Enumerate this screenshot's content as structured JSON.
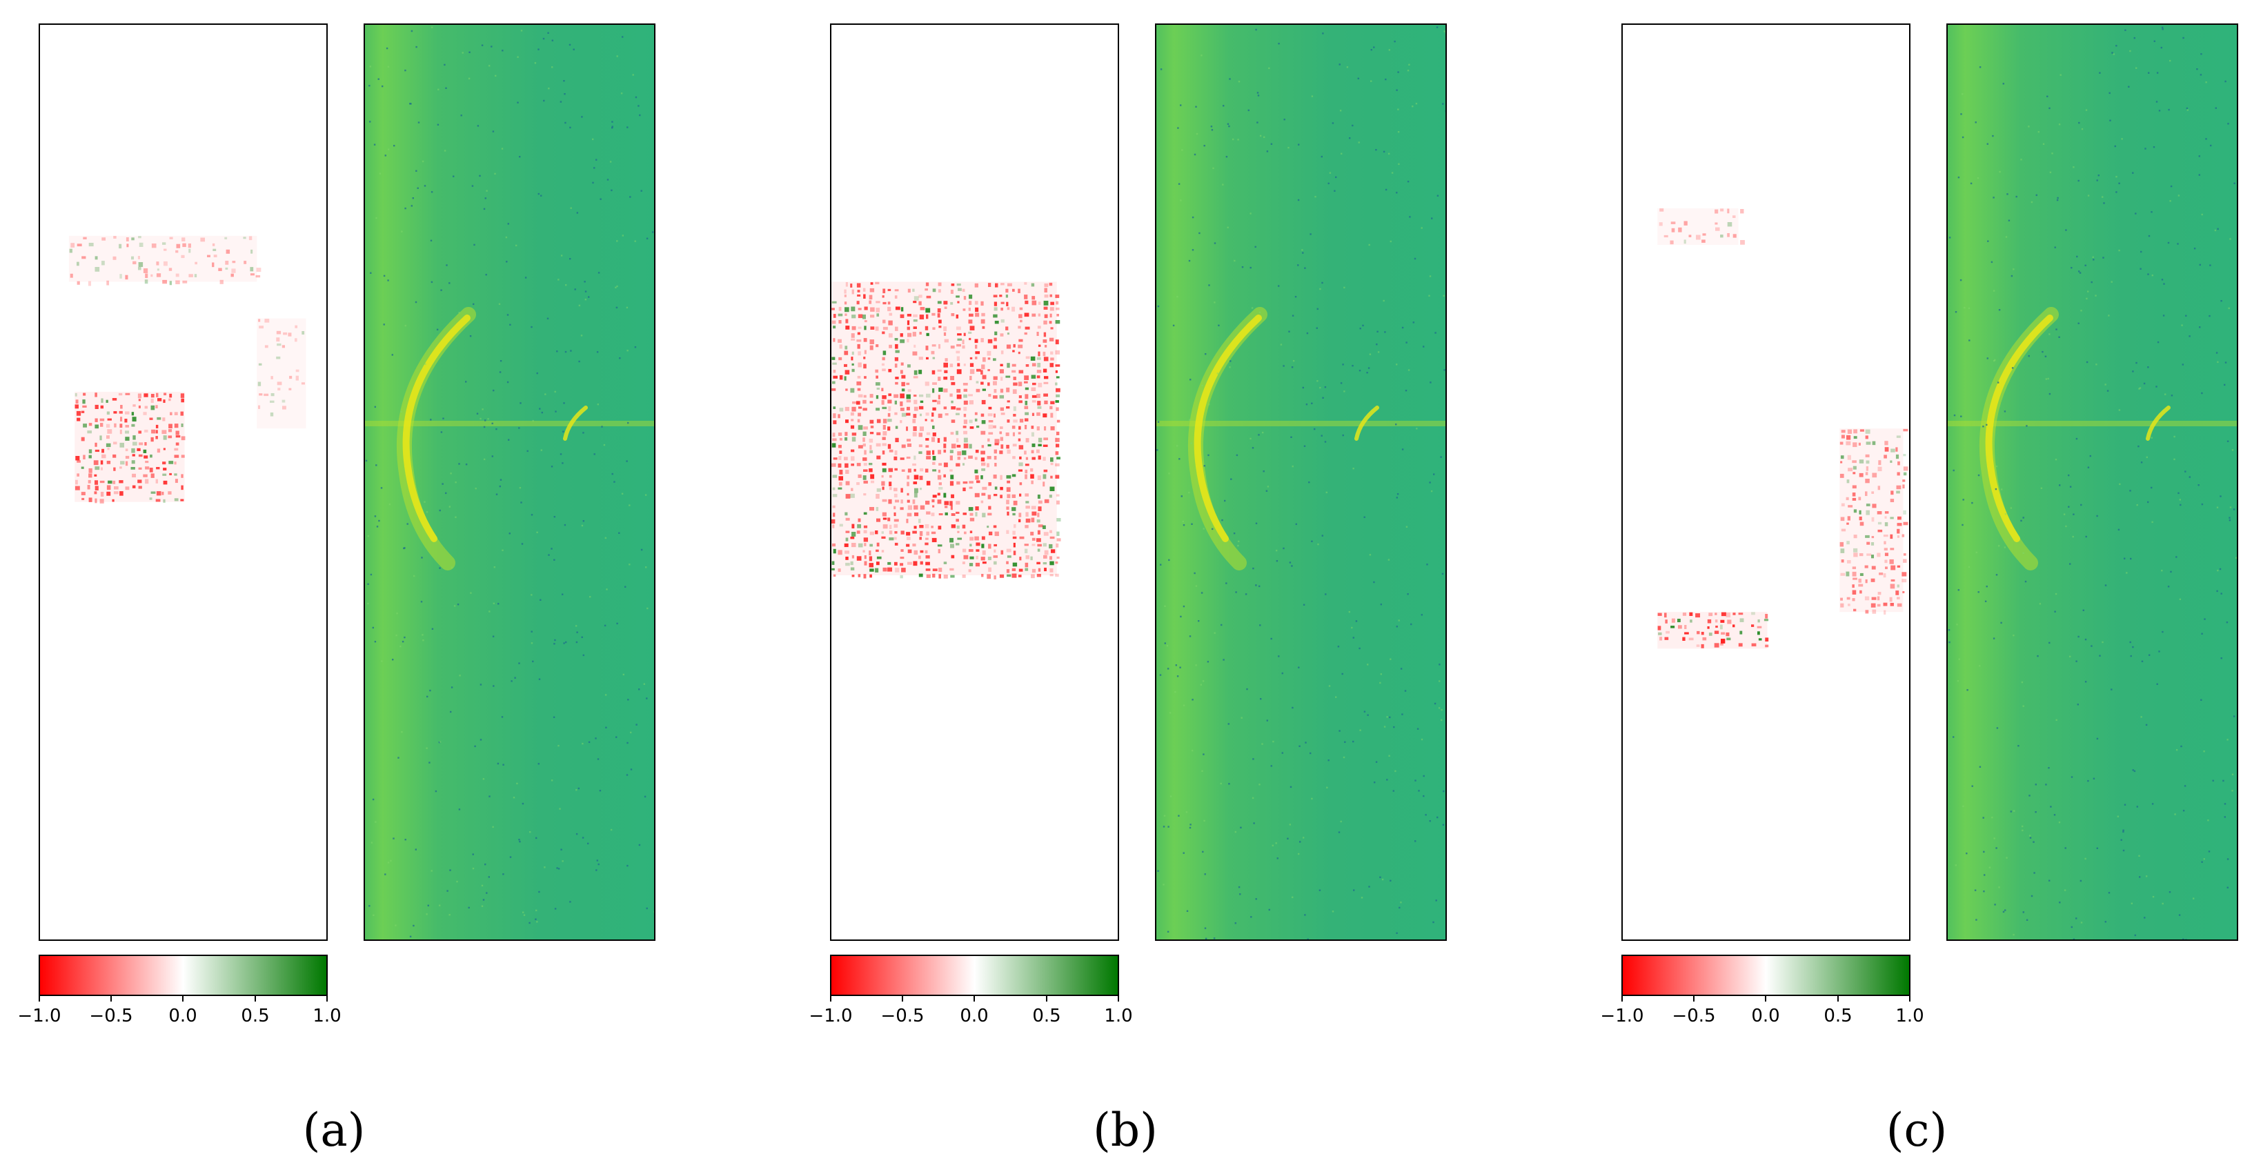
{
  "colors": {
    "negative": "#ff0000",
    "neutral": "#ffffff",
    "positive": "#007800",
    "spectrogram_base": "#2fb37a",
    "spectrogram_bright": "#b6e02e",
    "spectrogram_ridge": "#e5e51a",
    "frame": "#000000"
  },
  "chart_data": [
    {
      "type": "heatmap",
      "panel_label": "(a)",
      "title": "",
      "left_map": "attribution (red negative, white zero, green positive)",
      "right_map": "spectrogram (viridis-like colormap)",
      "colorbar": {
        "range": [
          -1.0,
          1.0
        ],
        "ticks": [
          "−1.0",
          "−0.5",
          "0.0",
          "0.5",
          "1.0"
        ],
        "tick_values": [
          -1.0,
          -0.5,
          0.0,
          0.5,
          1.0
        ]
      },
      "attribution_patches": [
        {
          "x": [
            0.1,
            0.75
          ],
          "y": [
            0.23,
            0.28
          ],
          "intensity": 0.3
        },
        {
          "x": [
            0.12,
            0.5
          ],
          "y": [
            0.4,
            0.52
          ],
          "intensity": 0.85
        },
        {
          "x": [
            0.75,
            0.92
          ],
          "y": [
            0.32,
            0.44
          ],
          "intensity": 0.15
        }
      ]
    },
    {
      "type": "heatmap",
      "panel_label": "(b)",
      "title": "",
      "left_map": "attribution (red negative, white zero, green positive)",
      "right_map": "spectrogram (viridis-like colormap)",
      "colorbar": {
        "range": [
          -1.0,
          1.0
        ],
        "ticks": [
          "−1.0",
          "−0.5",
          "0.0",
          "0.5",
          "1.0"
        ],
        "tick_values": [
          -1.0,
          -0.5,
          0.0,
          0.5,
          1.0
        ]
      },
      "attribution_patches": [
        {
          "x": [
            0.0,
            0.78
          ],
          "y": [
            0.28,
            0.6
          ],
          "intensity": 0.9
        }
      ]
    },
    {
      "type": "heatmap",
      "panel_label": "(c)",
      "title": "",
      "left_map": "attribution (red negative, white zero, green positive)",
      "right_map": "spectrogram (viridis-like colormap)",
      "colorbar": {
        "range": [
          -1.0,
          1.0
        ],
        "ticks": [
          "−1.0",
          "−0.5",
          "0.0",
          "0.5",
          "1.0"
        ],
        "tick_values": [
          -1.0,
          -0.5,
          0.0,
          0.5,
          1.0
        ]
      },
      "attribution_patches": [
        {
          "x": [
            0.12,
            0.4
          ],
          "y": [
            0.2,
            0.24
          ],
          "intensity": 0.25
        },
        {
          "x": [
            0.75,
            0.97
          ],
          "y": [
            0.44,
            0.64
          ],
          "intensity": 0.6
        },
        {
          "x": [
            0.12,
            0.5
          ],
          "y": [
            0.64,
            0.68
          ],
          "intensity": 0.95
        }
      ]
    }
  ]
}
